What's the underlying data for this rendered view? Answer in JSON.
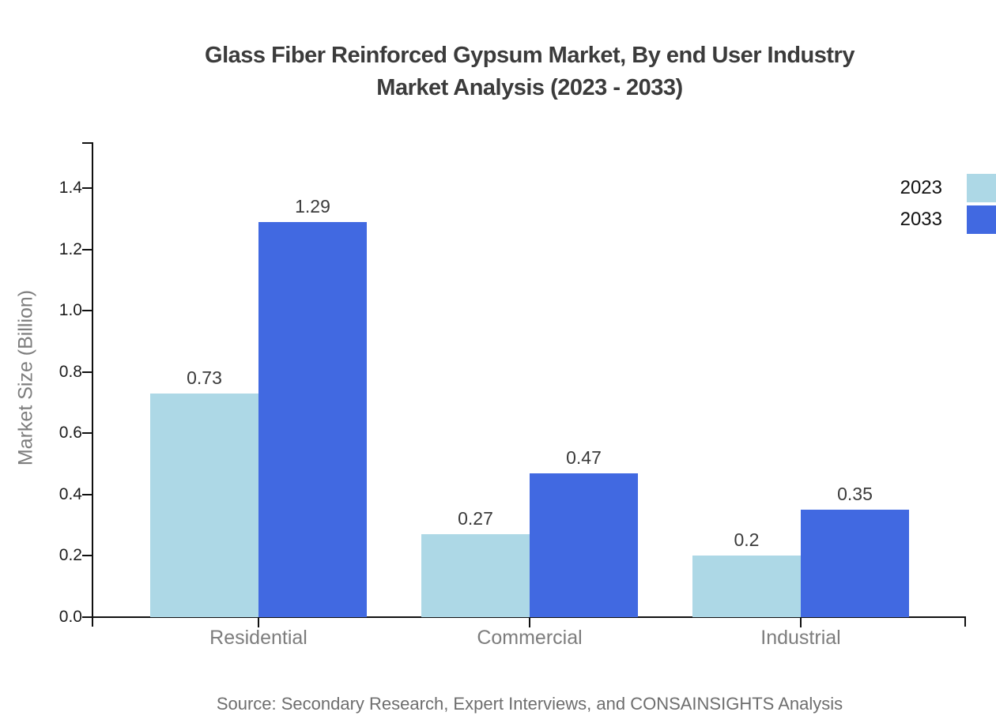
{
  "title": {
    "line1": "Glass Fiber Reinforced Gypsum Market, By end User Industry",
    "line2": "Market Analysis (2023 - 2033)"
  },
  "source": "Source: Secondary Research, Expert Interviews, and CONSAINSIGHTS Analysis",
  "colors": {
    "series_2023": "#add8e6",
    "series_2033": "#4169e1",
    "axis": "#101010",
    "title_text": "#3b3b3b",
    "muted_text": "#7d7d7d",
    "source_text": "#6e6e6e"
  },
  "chart_data": {
    "type": "bar",
    "title": "Glass Fiber Reinforced Gypsum Market, By end User Industry Market Analysis (2023 - 2033)",
    "categories": [
      "Residential",
      "Commercial",
      "Industrial"
    ],
    "series": [
      {
        "name": "2023",
        "color": "#add8e6",
        "values": [
          0.73,
          0.27,
          0.2
        ],
        "labels": [
          "0.73",
          "0.27",
          "0.2"
        ]
      },
      {
        "name": "2033",
        "color": "#4169e1",
        "values": [
          1.29,
          0.47,
          0.35
        ],
        "labels": [
          "1.29",
          "0.47",
          "0.35"
        ]
      }
    ],
    "xlabel": "",
    "ylabel": "Market Size (Billion)",
    "ylim": [
      0,
      1.55
    ],
    "yticks": [
      "0.0",
      "0.2",
      "0.4",
      "0.6",
      "0.8",
      "1.0",
      "1.2",
      "1.4"
    ],
    "grid": false,
    "legend_position": "top-right"
  }
}
